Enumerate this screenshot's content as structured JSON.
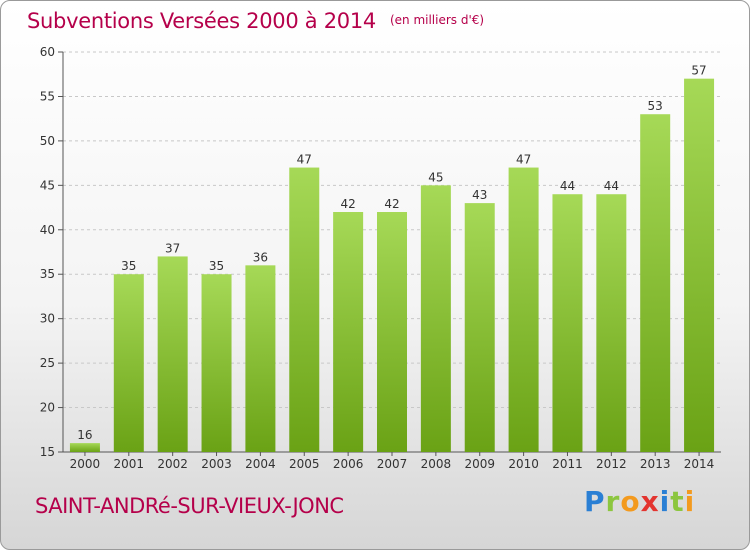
{
  "header": {
    "title": "Subventions Versées 2000 à 2014",
    "unit": "(en milliers d'€)"
  },
  "footer": {
    "commune": "SAINT-ANDRé-SUR-VIEUX-JONC",
    "logo": "Proxiti"
  },
  "colors": {
    "accent": "#b5004a",
    "bar_light": "#a6d957",
    "bar_dark": "#6aa215",
    "grid": "#c8c8c8"
  },
  "chart_data": {
    "type": "bar",
    "title": "Subventions Versées 2000 à 2014",
    "subtitle": "(en milliers d'€)",
    "xlabel": "",
    "ylabel": "",
    "categories": [
      "2000",
      "2001",
      "2002",
      "2003",
      "2004",
      "2005",
      "2006",
      "2007",
      "2008",
      "2009",
      "2010",
      "2011",
      "2012",
      "2013",
      "2014"
    ],
    "values": [
      16,
      35,
      37,
      35,
      36,
      47,
      42,
      42,
      45,
      43,
      47,
      44,
      44,
      53,
      57
    ],
    "ylim": [
      15,
      60
    ],
    "yticks": [
      15,
      20,
      25,
      30,
      35,
      40,
      45,
      50,
      55,
      60
    ],
    "grid": true,
    "data_labels": true
  }
}
